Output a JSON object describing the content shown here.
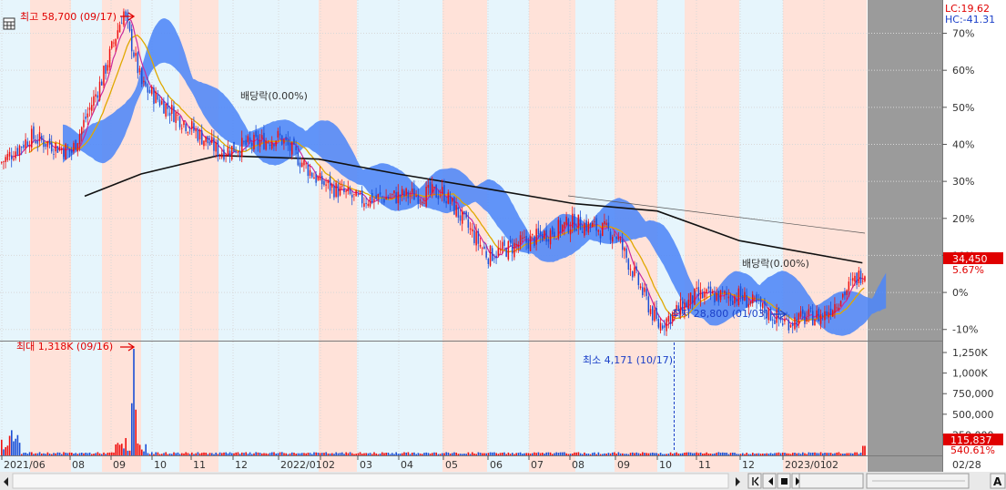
{
  "chart_data": {
    "type": "candlestick",
    "x_ticks": [
      "2021/06",
      "08",
      "09",
      "10",
      "11",
      "12",
      "2022/01",
      "02",
      "03",
      "04",
      "05",
      "06",
      "07",
      "08",
      "09",
      "10",
      "11",
      "12",
      "2023/01",
      "02"
    ],
    "x_end_label": "02/28",
    "y_right_ticks": [
      "70%",
      "60%",
      "50%",
      "40%",
      "30%",
      "20%",
      "10%",
      "0%",
      "-10%"
    ],
    "y_range_percent": [
      -14,
      78
    ],
    "volume_ticks": [
      "1,250K",
      "1,000K",
      "750,000",
      "500,000",
      "250,000"
    ],
    "volume_range": [
      0,
      1350000
    ],
    "lc_label": "LC:19.62",
    "hc_label": "HC:-41.31",
    "max_price_label": "최고 58,700 (09/17)",
    "min_price_label": "최저 28,800 (01/03)",
    "max_volume_label": "최대 1,318K (09/16)",
    "min_volume_label": "최소 4,171 (10/17)",
    "dividend_labels": [
      "배당락(0.00%)",
      "배당락(0.00%)"
    ],
    "current_price": "34,450",
    "current_change": "5.67%",
    "current_volume": "115,837",
    "current_volume_change": "540.61%",
    "price_series_percent": [
      {
        "date": "2021/06",
        "value": 35
      },
      {
        "date": "2021/07",
        "value": 42
      },
      {
        "date": "2021/08",
        "value": 38
      },
      {
        "date": "2021/09",
        "value": 58
      },
      {
        "date": "2021/09/17",
        "value": 76
      },
      {
        "date": "2021/10",
        "value": 56
      },
      {
        "date": "2021/11",
        "value": 47
      },
      {
        "date": "2021/12",
        "value": 38
      },
      {
        "date": "2022/01",
        "value": 42
      },
      {
        "date": "2022/02",
        "value": 30
      },
      {
        "date": "2022/03",
        "value": 25
      },
      {
        "date": "2022/04",
        "value": 26
      },
      {
        "date": "2022/05",
        "value": 27
      },
      {
        "date": "2022/06",
        "value": 10
      },
      {
        "date": "2022/07",
        "value": 14
      },
      {
        "date": "2022/08",
        "value": 19
      },
      {
        "date": "2022/09",
        "value": 16
      },
      {
        "date": "2022/10",
        "value": -9
      },
      {
        "date": "2022/11",
        "value": -1
      },
      {
        "date": "2022/12",
        "value": -1
      },
      {
        "date": "2023/01",
        "value": -8
      },
      {
        "date": "2023/02",
        "value": -6
      },
      {
        "date": "2023/02/28",
        "value": 5.67
      }
    ],
    "long_ma_percent": [
      {
        "date": "2021/07",
        "value": 26
      },
      {
        "date": "2021/10",
        "value": 32
      },
      {
        "date": "2021/12",
        "value": 37
      },
      {
        "date": "2022/02",
        "value": 36
      },
      {
        "date": "2022/04",
        "value": 32
      },
      {
        "date": "2022/06",
        "value": 28
      },
      {
        "date": "2022/08",
        "value": 24
      },
      {
        "date": "2022/10",
        "value": 22
      },
      {
        "date": "2022/12",
        "value": 14
      },
      {
        "date": "2023/02/28",
        "value": 8
      }
    ],
    "volume_series": [
      {
        "date": "2021/06",
        "value": 300000
      },
      {
        "date": "2021/07",
        "value": 60000
      },
      {
        "date": "2021/08",
        "value": 40000
      },
      {
        "date": "2021/09",
        "value": 200000
      },
      {
        "date": "2021/09/16",
        "value": 1318000
      },
      {
        "date": "2021/10",
        "value": 80000
      },
      {
        "date": "2021/12",
        "value": 30000
      },
      {
        "date": "2022/04",
        "value": 20000
      },
      {
        "date": "2022/10/17",
        "value": 4171
      },
      {
        "date": "2023/01",
        "value": 25000
      },
      {
        "date": "2023/02/28",
        "value": 115837
      }
    ],
    "colors": {
      "up": "#ee1111",
      "down": "#1a4fd6",
      "cloud": "#4f86f7",
      "ma_short": "#e0a800",
      "ma_mid": "#cc2a9c",
      "ma_long": "#111111",
      "band_pink": "#ffe2d9",
      "band_blue": "#e6f5fc"
    }
  }
}
